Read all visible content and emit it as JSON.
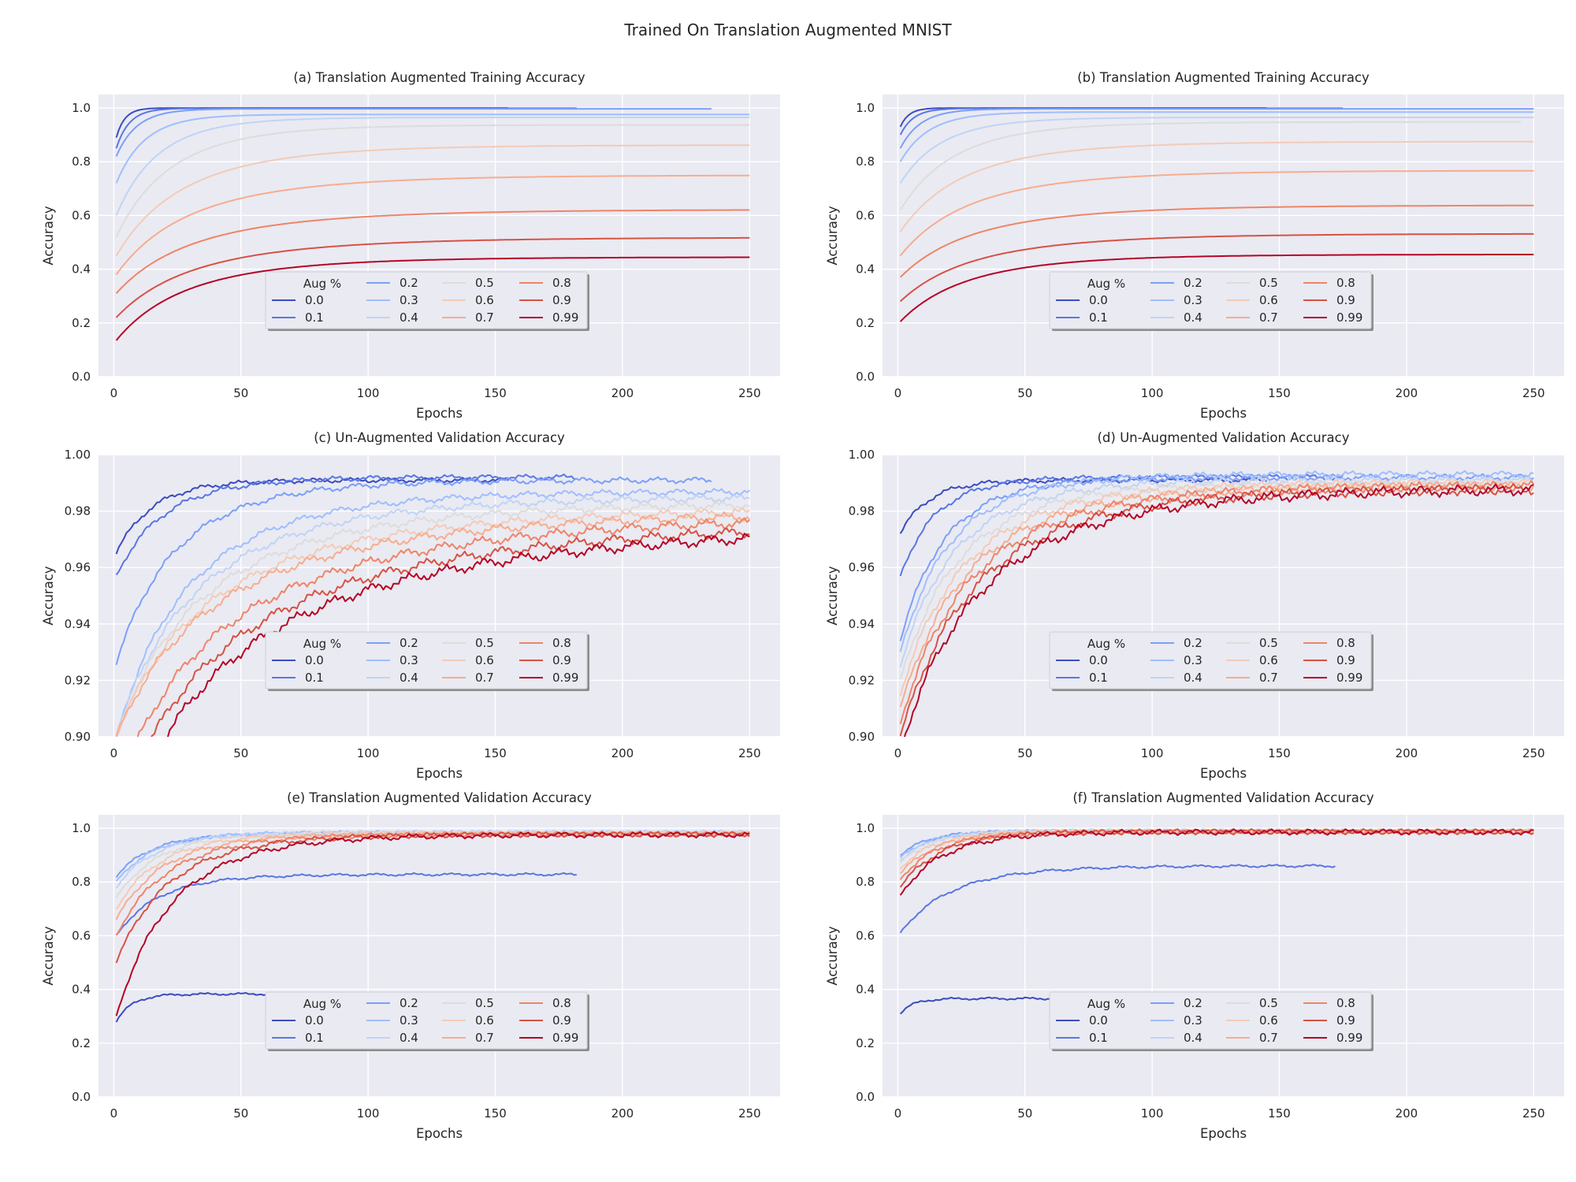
{
  "figure": {
    "title": "Trained On Translation Augmented MNIST",
    "legend_title": "Aug %",
    "colors": {
      "background": "#eaeaf2",
      "grid": "#ffffff",
      "text": "#262626"
    }
  },
  "chart_data": [
    {
      "type": "line",
      "title": "(a) Translation Augmented Training Accuracy",
      "xlabel": "Epochs",
      "ylabel": "Accuracy",
      "xlim": [
        -6,
        262
      ],
      "ylim": [
        0,
        1.05
      ],
      "xticks": [
        0,
        50,
        100,
        150,
        200,
        250
      ],
      "yticks": [
        0.0,
        0.2,
        0.4,
        0.6,
        0.8,
        1.0
      ],
      "ytick_labels": [
        "0.0",
        "0.2",
        "0.4",
        "0.6",
        "0.8",
        "1.0"
      ],
      "grid": true,
      "legend_placement": "lower-center",
      "series": [
        {
          "name": "0.0",
          "color": "#3b4cc0",
          "x_end": 155,
          "y_start": 0.89,
          "y_end": 1.0,
          "rate": 0.8
        },
        {
          "name": "0.1",
          "color": "#5977e3",
          "x_end": 182,
          "y_start": 0.85,
          "y_end": 0.999,
          "rate": 0.5
        },
        {
          "name": "0.2",
          "color": "#7b9ff9",
          "x_end": 235,
          "y_start": 0.82,
          "y_end": 0.997,
          "rate": 0.3
        },
        {
          "name": "0.3",
          "color": "#9ebeff",
          "x_end": 250,
          "y_start": 0.72,
          "y_end": 0.976,
          "rate": 0.2
        },
        {
          "name": "0.4",
          "color": "#c0d4f5",
          "x_end": 250,
          "y_start": 0.6,
          "y_end": 0.965,
          "rate": 0.12
        },
        {
          "name": "0.5",
          "color": "#dddcdc",
          "x_end": 250,
          "y_start": 0.52,
          "y_end": 0.937,
          "rate": 0.08
        },
        {
          "name": "0.6",
          "color": "#f2cbb7",
          "x_end": 250,
          "y_start": 0.45,
          "y_end": 0.862,
          "rate": 0.055
        },
        {
          "name": "0.7",
          "color": "#f7ac8e",
          "x_end": 250,
          "y_start": 0.38,
          "y_end": 0.75,
          "rate": 0.045
        },
        {
          "name": "0.8",
          "color": "#ee8468",
          "x_end": 250,
          "y_start": 0.31,
          "y_end": 0.622,
          "rate": 0.04
        },
        {
          "name": "0.9",
          "color": "#d65244",
          "x_end": 250,
          "y_start": 0.22,
          "y_end": 0.518,
          "rate": 0.04
        },
        {
          "name": "0.99",
          "color": "#b40426",
          "x_end": 250,
          "y_start": 0.135,
          "y_end": 0.445,
          "rate": 0.05
        }
      ]
    },
    {
      "type": "line",
      "title": "(b) Translation Augmented Training Accuracy",
      "xlabel": "Epochs",
      "ylabel": "Accuracy",
      "xlim": [
        -6,
        262
      ],
      "ylim": [
        0,
        1.05
      ],
      "xticks": [
        0,
        50,
        100,
        150,
        200,
        250
      ],
      "yticks": [
        0.0,
        0.2,
        0.4,
        0.6,
        0.8,
        1.0
      ],
      "ytick_labels": [
        "0.0",
        "0.2",
        "0.4",
        "0.6",
        "0.8",
        "1.0"
      ],
      "grid": true,
      "legend_placement": "lower-center",
      "series": [
        {
          "name": "0.0",
          "color": "#3b4cc0",
          "x_end": 145,
          "y_start": 0.93,
          "y_end": 1.0,
          "rate": 0.8
        },
        {
          "name": "0.1",
          "color": "#5977e3",
          "x_end": 175,
          "y_start": 0.9,
          "y_end": 0.999,
          "rate": 0.5
        },
        {
          "name": "0.2",
          "color": "#7b9ff9",
          "x_end": 250,
          "y_start": 0.85,
          "y_end": 0.997,
          "rate": 0.3
        },
        {
          "name": "0.3",
          "color": "#9ebeff",
          "x_end": 250,
          "y_start": 0.8,
          "y_end": 0.985,
          "rate": 0.2
        },
        {
          "name": "0.4",
          "color": "#c0d4f5",
          "x_end": 250,
          "y_start": 0.72,
          "y_end": 0.965,
          "rate": 0.12
        },
        {
          "name": "0.5",
          "color": "#dddcdc",
          "x_end": 245,
          "y_start": 0.62,
          "y_end": 0.948,
          "rate": 0.08
        },
        {
          "name": "0.6",
          "color": "#f2cbb7",
          "x_end": 250,
          "y_start": 0.54,
          "y_end": 0.875,
          "rate": 0.06
        },
        {
          "name": "0.7",
          "color": "#f7ac8e",
          "x_end": 250,
          "y_start": 0.45,
          "y_end": 0.767,
          "rate": 0.05
        },
        {
          "name": "0.8",
          "color": "#ee8468",
          "x_end": 250,
          "y_start": 0.37,
          "y_end": 0.638,
          "rate": 0.045
        },
        {
          "name": "0.9",
          "color": "#d65244",
          "x_end": 250,
          "y_start": 0.28,
          "y_end": 0.532,
          "rate": 0.045
        },
        {
          "name": "0.99",
          "color": "#b40426",
          "x_end": 250,
          "y_start": 0.205,
          "y_end": 0.455,
          "rate": 0.055
        }
      ]
    },
    {
      "type": "line",
      "title": "(c) Un-Augmented Validation Accuracy",
      "xlabel": "Epochs",
      "ylabel": "Accuracy",
      "xlim": [
        -6,
        262
      ],
      "ylim": [
        0.9,
        1.0
      ],
      "xticks": [
        0,
        50,
        100,
        150,
        200,
        250
      ],
      "yticks": [
        0.9,
        0.92,
        0.94,
        0.96,
        0.98,
        1.0
      ],
      "ytick_labels": [
        "0.90",
        "0.92",
        "0.94",
        "0.96",
        "0.98",
        "1.00"
      ],
      "grid": true,
      "legend_placement": "lower-center",
      "series": [
        {
          "name": "0.0",
          "color": "#3b4cc0",
          "x_end": 155,
          "y_start": 0.965,
          "y_end": 0.991,
          "rate": 0.15
        },
        {
          "name": "0.1",
          "color": "#5977e3",
          "x_end": 182,
          "y_start": 0.957,
          "y_end": 0.992,
          "rate": 0.1
        },
        {
          "name": "0.2",
          "color": "#7b9ff9",
          "x_end": 235,
          "y_start": 0.926,
          "y_end": 0.991,
          "rate": 0.07
        },
        {
          "name": "0.3",
          "color": "#9ebeff",
          "x_end": 250,
          "y_start": 0.9,
          "y_end": 0.987,
          "rate": 0.05
        },
        {
          "name": "0.4",
          "color": "#c0d4f5",
          "x_end": 250,
          "y_start": 0.9,
          "y_end": 0.985,
          "rate": 0.04
        },
        {
          "name": "0.5",
          "color": "#dddcdc",
          "x_end": 250,
          "y_start": 0.9,
          "y_end": 0.983,
          "rate": 0.032
        },
        {
          "name": "0.6",
          "color": "#f2cbb7",
          "x_end": 250,
          "y_start": 0.9,
          "y_end": 0.981,
          "rate": 0.026
        },
        {
          "name": "0.7",
          "color": "#f7ac8e",
          "x_end": 250,
          "y_start": 0.9,
          "y_end": 0.98,
          "rate": 0.022
        },
        {
          "name": "0.8",
          "color": "#ee8468",
          "x_end": 250,
          "y_start": 0.88,
          "y_end": 0.979,
          "rate": 0.019
        },
        {
          "name": "0.9",
          "color": "#d65244",
          "x_end": 250,
          "y_start": 0.87,
          "y_end": 0.977,
          "rate": 0.016
        },
        {
          "name": "0.99",
          "color": "#b40426",
          "x_end": 250,
          "y_start": 0.86,
          "y_end": 0.976,
          "rate": 0.014
        }
      ]
    },
    {
      "type": "line",
      "title": "(d) Un-Augmented Validation Accuracy",
      "xlabel": "Epochs",
      "ylabel": "Accuracy",
      "xlim": [
        -6,
        262
      ],
      "ylim": [
        0.9,
        1.0
      ],
      "xticks": [
        0,
        50,
        100,
        150,
        200,
        250
      ],
      "yticks": [
        0.9,
        0.92,
        0.94,
        0.96,
        0.98,
        1.0
      ],
      "ytick_labels": [
        "0.90",
        "0.92",
        "0.94",
        "0.96",
        "0.98",
        "1.00"
      ],
      "grid": true,
      "legend_placement": "lower-center",
      "series": [
        {
          "name": "0.0",
          "color": "#3b4cc0",
          "x_end": 145,
          "y_start": 0.972,
          "y_end": 0.991,
          "rate": 0.2
        },
        {
          "name": "0.1",
          "color": "#5977e3",
          "x_end": 175,
          "y_start": 0.957,
          "y_end": 0.992,
          "rate": 0.15
        },
        {
          "name": "0.2",
          "color": "#7b9ff9",
          "x_end": 250,
          "y_start": 0.934,
          "y_end": 0.992,
          "rate": 0.11
        },
        {
          "name": "0.3",
          "color": "#9ebeff",
          "x_end": 250,
          "y_start": 0.93,
          "y_end": 0.993,
          "rate": 0.09
        },
        {
          "name": "0.4",
          "color": "#c0d4f5",
          "x_end": 250,
          "y_start": 0.925,
          "y_end": 0.991,
          "rate": 0.08
        },
        {
          "name": "0.5",
          "color": "#dddcdc",
          "x_end": 245,
          "y_start": 0.92,
          "y_end": 0.99,
          "rate": 0.07
        },
        {
          "name": "0.6",
          "color": "#f2cbb7",
          "x_end": 250,
          "y_start": 0.915,
          "y_end": 0.99,
          "rate": 0.06
        },
        {
          "name": "0.7",
          "color": "#f7ac8e",
          "x_end": 250,
          "y_start": 0.91,
          "y_end": 0.989,
          "rate": 0.055
        },
        {
          "name": "0.8",
          "color": "#ee8468",
          "x_end": 250,
          "y_start": 0.905,
          "y_end": 0.989,
          "rate": 0.05
        },
        {
          "name": "0.9",
          "color": "#d65244",
          "x_end": 250,
          "y_start": 0.9,
          "y_end": 0.988,
          "rate": 0.045
        },
        {
          "name": "0.99",
          "color": "#b40426",
          "x_end": 250,
          "y_start": 0.895,
          "y_end": 0.988,
          "rate": 0.04
        }
      ]
    },
    {
      "type": "line",
      "title": "(e) Translation Augmented Validation Accuracy",
      "xlabel": "Epochs",
      "ylabel": "Accuracy",
      "xlim": [
        -6,
        262
      ],
      "ylim": [
        0,
        1.05
      ],
      "xticks": [
        0,
        50,
        100,
        150,
        200,
        250
      ],
      "yticks": [
        0.0,
        0.2,
        0.4,
        0.6,
        0.8,
        1.0
      ],
      "ytick_labels": [
        "0.0",
        "0.2",
        "0.4",
        "0.6",
        "0.8",
        "1.0"
      ],
      "grid": true,
      "legend_placement": "lower-center",
      "series": [
        {
          "name": "0.0",
          "color": "#3b4cc0",
          "x_end": 155,
          "y_start": 0.28,
          "y_end": 0.383,
          "rate": 0.4
        },
        {
          "name": "0.1",
          "color": "#5977e3",
          "x_end": 182,
          "y_start": 0.6,
          "y_end": 0.828,
          "rate": 0.12
        },
        {
          "name": "0.2",
          "color": "#7b9ff9",
          "x_end": 235,
          "y_start": 0.82,
          "y_end": 0.98,
          "rate": 0.15
        },
        {
          "name": "0.3",
          "color": "#9ebeff",
          "x_end": 250,
          "y_start": 0.8,
          "y_end": 0.985,
          "rate": 0.14
        },
        {
          "name": "0.4",
          "color": "#c0d4f5",
          "x_end": 250,
          "y_start": 0.78,
          "y_end": 0.985,
          "rate": 0.13
        },
        {
          "name": "0.5",
          "color": "#dddcdc",
          "x_end": 250,
          "y_start": 0.74,
          "y_end": 0.983,
          "rate": 0.12
        },
        {
          "name": "0.6",
          "color": "#f2cbb7",
          "x_end": 250,
          "y_start": 0.7,
          "y_end": 0.981,
          "rate": 0.11
        },
        {
          "name": "0.7",
          "color": "#f7ac8e",
          "x_end": 250,
          "y_start": 0.66,
          "y_end": 0.979,
          "rate": 0.1
        },
        {
          "name": "0.8",
          "color": "#ee8468",
          "x_end": 250,
          "y_start": 0.6,
          "y_end": 0.978,
          "rate": 0.09
        },
        {
          "name": "0.9",
          "color": "#d65244",
          "x_end": 250,
          "y_start": 0.5,
          "y_end": 0.977,
          "rate": 0.085
        },
        {
          "name": "0.99",
          "color": "#b40426",
          "x_end": 250,
          "y_start": 0.3,
          "y_end": 0.976,
          "rate": 0.08
        }
      ]
    },
    {
      "type": "line",
      "title": "(f) Translation Augmented Validation Accuracy",
      "xlabel": "Epochs",
      "ylabel": "Accuracy",
      "xlim": [
        -6,
        262
      ],
      "ylim": [
        0,
        1.05
      ],
      "xticks": [
        0,
        50,
        100,
        150,
        200,
        250
      ],
      "yticks": [
        0.0,
        0.2,
        0.4,
        0.6,
        0.8,
        1.0
      ],
      "ytick_labels": [
        "0.0",
        "0.2",
        "0.4",
        "0.6",
        "0.8",
        "1.0"
      ],
      "grid": true,
      "legend_placement": "lower-center",
      "series": [
        {
          "name": "0.0",
          "color": "#3b4cc0",
          "x_end": 145,
          "y_start": 0.31,
          "y_end": 0.366,
          "rate": 0.5
        },
        {
          "name": "0.1",
          "color": "#5977e3",
          "x_end": 172,
          "y_start": 0.61,
          "y_end": 0.86,
          "rate": 0.09
        },
        {
          "name": "0.2",
          "color": "#7b9ff9",
          "x_end": 250,
          "y_start": 0.9,
          "y_end": 0.99,
          "rate": 0.2
        },
        {
          "name": "0.3",
          "color": "#9ebeff",
          "x_end": 250,
          "y_start": 0.89,
          "y_end": 0.99,
          "rate": 0.19
        },
        {
          "name": "0.4",
          "color": "#c0d4f5",
          "x_end": 250,
          "y_start": 0.88,
          "y_end": 0.99,
          "rate": 0.18
        },
        {
          "name": "0.5",
          "color": "#dddcdc",
          "x_end": 250,
          "y_start": 0.87,
          "y_end": 0.989,
          "rate": 0.17
        },
        {
          "name": "0.6",
          "color": "#f2cbb7",
          "x_end": 250,
          "y_start": 0.85,
          "y_end": 0.988,
          "rate": 0.16
        },
        {
          "name": "0.7",
          "color": "#f7ac8e",
          "x_end": 250,
          "y_start": 0.83,
          "y_end": 0.988,
          "rate": 0.15
        },
        {
          "name": "0.8",
          "color": "#ee8468",
          "x_end": 250,
          "y_start": 0.81,
          "y_end": 0.987,
          "rate": 0.14
        },
        {
          "name": "0.9",
          "color": "#d65244",
          "x_end": 250,
          "y_start": 0.78,
          "y_end": 0.987,
          "rate": 0.13
        },
        {
          "name": "0.99",
          "color": "#b40426",
          "x_end": 250,
          "y_start": 0.75,
          "y_end": 0.986,
          "rate": 0.12
        }
      ]
    }
  ]
}
